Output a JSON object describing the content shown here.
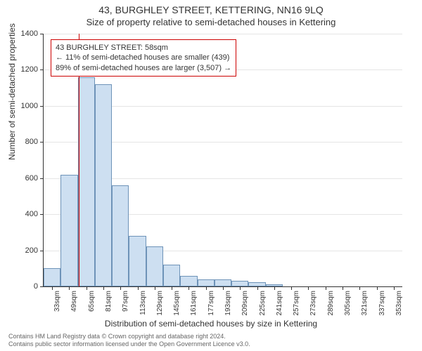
{
  "title": "43, BURGHLEY STREET, KETTERING, NN16 9LQ",
  "subtitle": "Size of property relative to semi-detached houses in Kettering",
  "y_axis_title": "Number of semi-detached properties",
  "x_axis_title": "Distribution of semi-detached houses by size in Kettering",
  "footer_line1": "Contains HM Land Registry data © Crown copyright and database right 2024.",
  "footer_line2": "Contains public sector information licensed under the Open Government Licence v3.0.",
  "annotation": {
    "line1": "43 BURGHLEY STREET: 58sqm",
    "line2": "← 11% of semi-detached houses are smaller (439)",
    "line3": "89% of semi-detached houses are larger (3,507) →"
  },
  "chart": {
    "type": "histogram",
    "ylim": [
      0,
      1400
    ],
    "ytick_step": 200,
    "xlim_sqm": [
      25,
      361
    ],
    "marker_sqm": 58,
    "bar_fill": "#cddff1",
    "bar_border": "#6e93b8",
    "marker_color": "#cc0000",
    "grid_color": "#e5e5e5",
    "background_color": "#ffffff",
    "bar_width_sqm": 16,
    "bars": [
      {
        "start_sqm": 25,
        "count": 100
      },
      {
        "start_sqm": 41,
        "count": 620
      },
      {
        "start_sqm": 57,
        "count": 1160
      },
      {
        "start_sqm": 73,
        "count": 1120
      },
      {
        "start_sqm": 89,
        "count": 560
      },
      {
        "start_sqm": 105,
        "count": 280
      },
      {
        "start_sqm": 121,
        "count": 220
      },
      {
        "start_sqm": 137,
        "count": 120
      },
      {
        "start_sqm": 153,
        "count": 60
      },
      {
        "start_sqm": 169,
        "count": 40
      },
      {
        "start_sqm": 185,
        "count": 40
      },
      {
        "start_sqm": 201,
        "count": 30
      },
      {
        "start_sqm": 217,
        "count": 25
      },
      {
        "start_sqm": 233,
        "count": 10
      }
    ],
    "x_tick_labels": [
      "33sqm",
      "49sqm",
      "65sqm",
      "81sqm",
      "97sqm",
      "113sqm",
      "129sqm",
      "145sqm",
      "161sqm",
      "177sqm",
      "193sqm",
      "209sqm",
      "225sqm",
      "241sqm",
      "257sqm",
      "273sqm",
      "289sqm",
      "305sqm",
      "321sqm",
      "337sqm",
      "353sqm"
    ],
    "x_tick_sqm": [
      33,
      49,
      65,
      81,
      97,
      113,
      129,
      145,
      161,
      177,
      193,
      209,
      225,
      241,
      257,
      273,
      289,
      305,
      321,
      337,
      353
    ]
  }
}
